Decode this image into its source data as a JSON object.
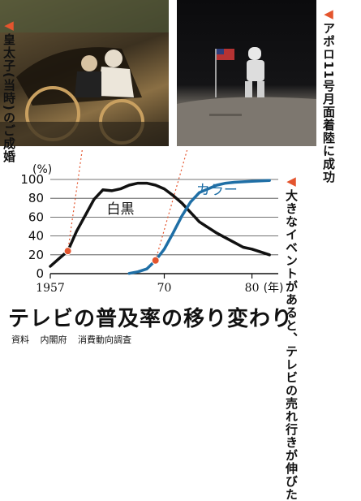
{
  "captions": {
    "wedding": "皇太子(当時)のご成婚",
    "moon": "アポロ11号月面着陸に成功",
    "note": "大きなイベントがあると、テレビの売れ行きが伸びた"
  },
  "title": "テレビの普及率の移り変わり",
  "source": {
    "label": "資料",
    "org": "内閣府",
    "survey": "消費動向調査"
  },
  "chart_data": {
    "type": "line",
    "ylabel": "(%)",
    "xlabel": "(年)",
    "xlim": [
      1957,
      1983
    ],
    "ylim": [
      0,
      100
    ],
    "yticks": [
      0,
      20,
      40,
      60,
      80,
      100
    ],
    "xticks": [
      {
        "value": 1957,
        "label": "1957"
      },
      {
        "value": 1970,
        "label": "70"
      },
      {
        "value": 1980,
        "label": "80"
      }
    ],
    "series": [
      {
        "name": "白黒",
        "color": "#111111",
        "points": [
          [
            1957,
            7.8
          ],
          [
            1958,
            16
          ],
          [
            1959,
            24
          ],
          [
            1960,
            45
          ],
          [
            1961,
            62
          ],
          [
            1962,
            79
          ],
          [
            1963,
            89
          ],
          [
            1964,
            88
          ],
          [
            1965,
            90
          ],
          [
            1966,
            94
          ],
          [
            1967,
            96
          ],
          [
            1968,
            96
          ],
          [
            1969,
            94
          ],
          [
            1970,
            90
          ],
          [
            1971,
            83
          ],
          [
            1972,
            75
          ],
          [
            1973,
            65
          ],
          [
            1974,
            55
          ],
          [
            1975,
            49
          ],
          [
            1976,
            43
          ],
          [
            1977,
            38
          ],
          [
            1978,
            33
          ],
          [
            1979,
            28
          ],
          [
            1980,
            26
          ],
          [
            1981,
            23
          ],
          [
            1982,
            20
          ]
        ]
      },
      {
        "name": "カラー",
        "color": "#1f6fa6",
        "points": [
          [
            1966,
            0.3
          ],
          [
            1967,
            2
          ],
          [
            1968,
            5
          ],
          [
            1969,
            14
          ],
          [
            1970,
            26
          ],
          [
            1971,
            43
          ],
          [
            1972,
            61
          ],
          [
            1973,
            76
          ],
          [
            1974,
            86
          ],
          [
            1975,
            90
          ],
          [
            1976,
            94
          ],
          [
            1977,
            96
          ],
          [
            1978,
            97
          ],
          [
            1979,
            97.5
          ],
          [
            1980,
            98
          ],
          [
            1981,
            98.5
          ],
          [
            1982,
            99
          ]
        ]
      }
    ],
    "markers": [
      {
        "series": "白黒",
        "x": 1959,
        "y": 24,
        "color": "#e4552e"
      },
      {
        "series": "カラー",
        "x": 1969,
        "y": 14,
        "color": "#e4552e"
      }
    ],
    "series_labels": [
      {
        "text": "白黒",
        "x": 1965,
        "y": 64
      },
      {
        "text": "カラー",
        "x": 1976,
        "y": 84
      }
    ]
  }
}
